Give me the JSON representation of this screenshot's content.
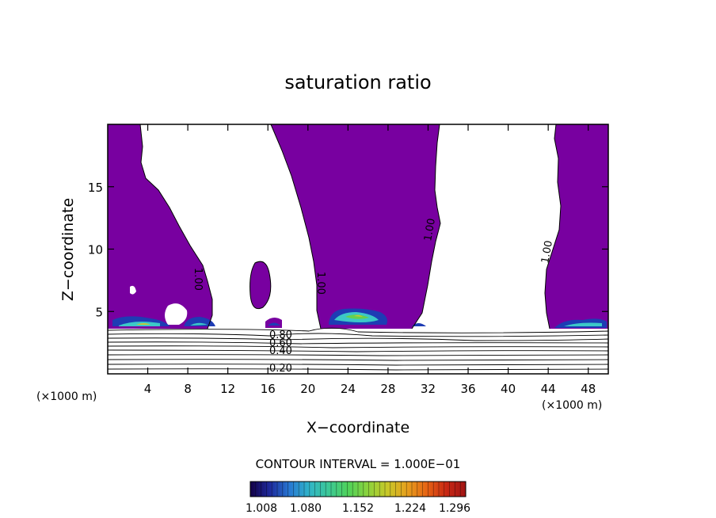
{
  "chart_data": {
    "type": "contour",
    "title": "saturation ratio",
    "xlabel": "X−coordinate",
    "ylabel": "Z−coordinate",
    "x_unit_left": "(×1000 m)",
    "x_unit_right": "(×1000 m)",
    "xlim": [
      0,
      50
    ],
    "ylim": [
      0,
      20
    ],
    "xticks": [
      4,
      8,
      12,
      16,
      20,
      24,
      28,
      32,
      36,
      40,
      44,
      48
    ],
    "yticks": [
      5,
      10,
      15
    ],
    "contour_interval_text": "CONTOUR INTERVAL = 1.000E−01",
    "contour_labels": [
      {
        "text": "1.00",
        "x": 8.5,
        "z": 8.5
      },
      {
        "text": "1.00",
        "x": 21.5,
        "z": 7.3
      },
      {
        "text": "1.00",
        "x": 32.5,
        "z": 11.5
      },
      {
        "text": "1.00",
        "x": 44.2,
        "z": 10.0
      },
      {
        "text": "0.80",
        "x": 17.5,
        "z": 3.2
      },
      {
        "text": "0.60",
        "x": 17.5,
        "z": 2.6
      },
      {
        "text": "0.40",
        "x": 17.5,
        "z": 1.8
      },
      {
        "text": "0.20",
        "x": 17.5,
        "z": 0.6
      }
    ],
    "colorbar": {
      "tick_labels": [
        "1.008",
        "1.080",
        "1.152",
        "1.224",
        "1.296"
      ],
      "colors": [
        "#140046",
        "#1e2a9c",
        "#2878d2",
        "#30b4c8",
        "#3cc896",
        "#50d25a",
        "#8cd23c",
        "#c8c828",
        "#e6a01e",
        "#e66414",
        "#c82814",
        "#a01414"
      ]
    },
    "fill_color": "#7800a0"
  }
}
